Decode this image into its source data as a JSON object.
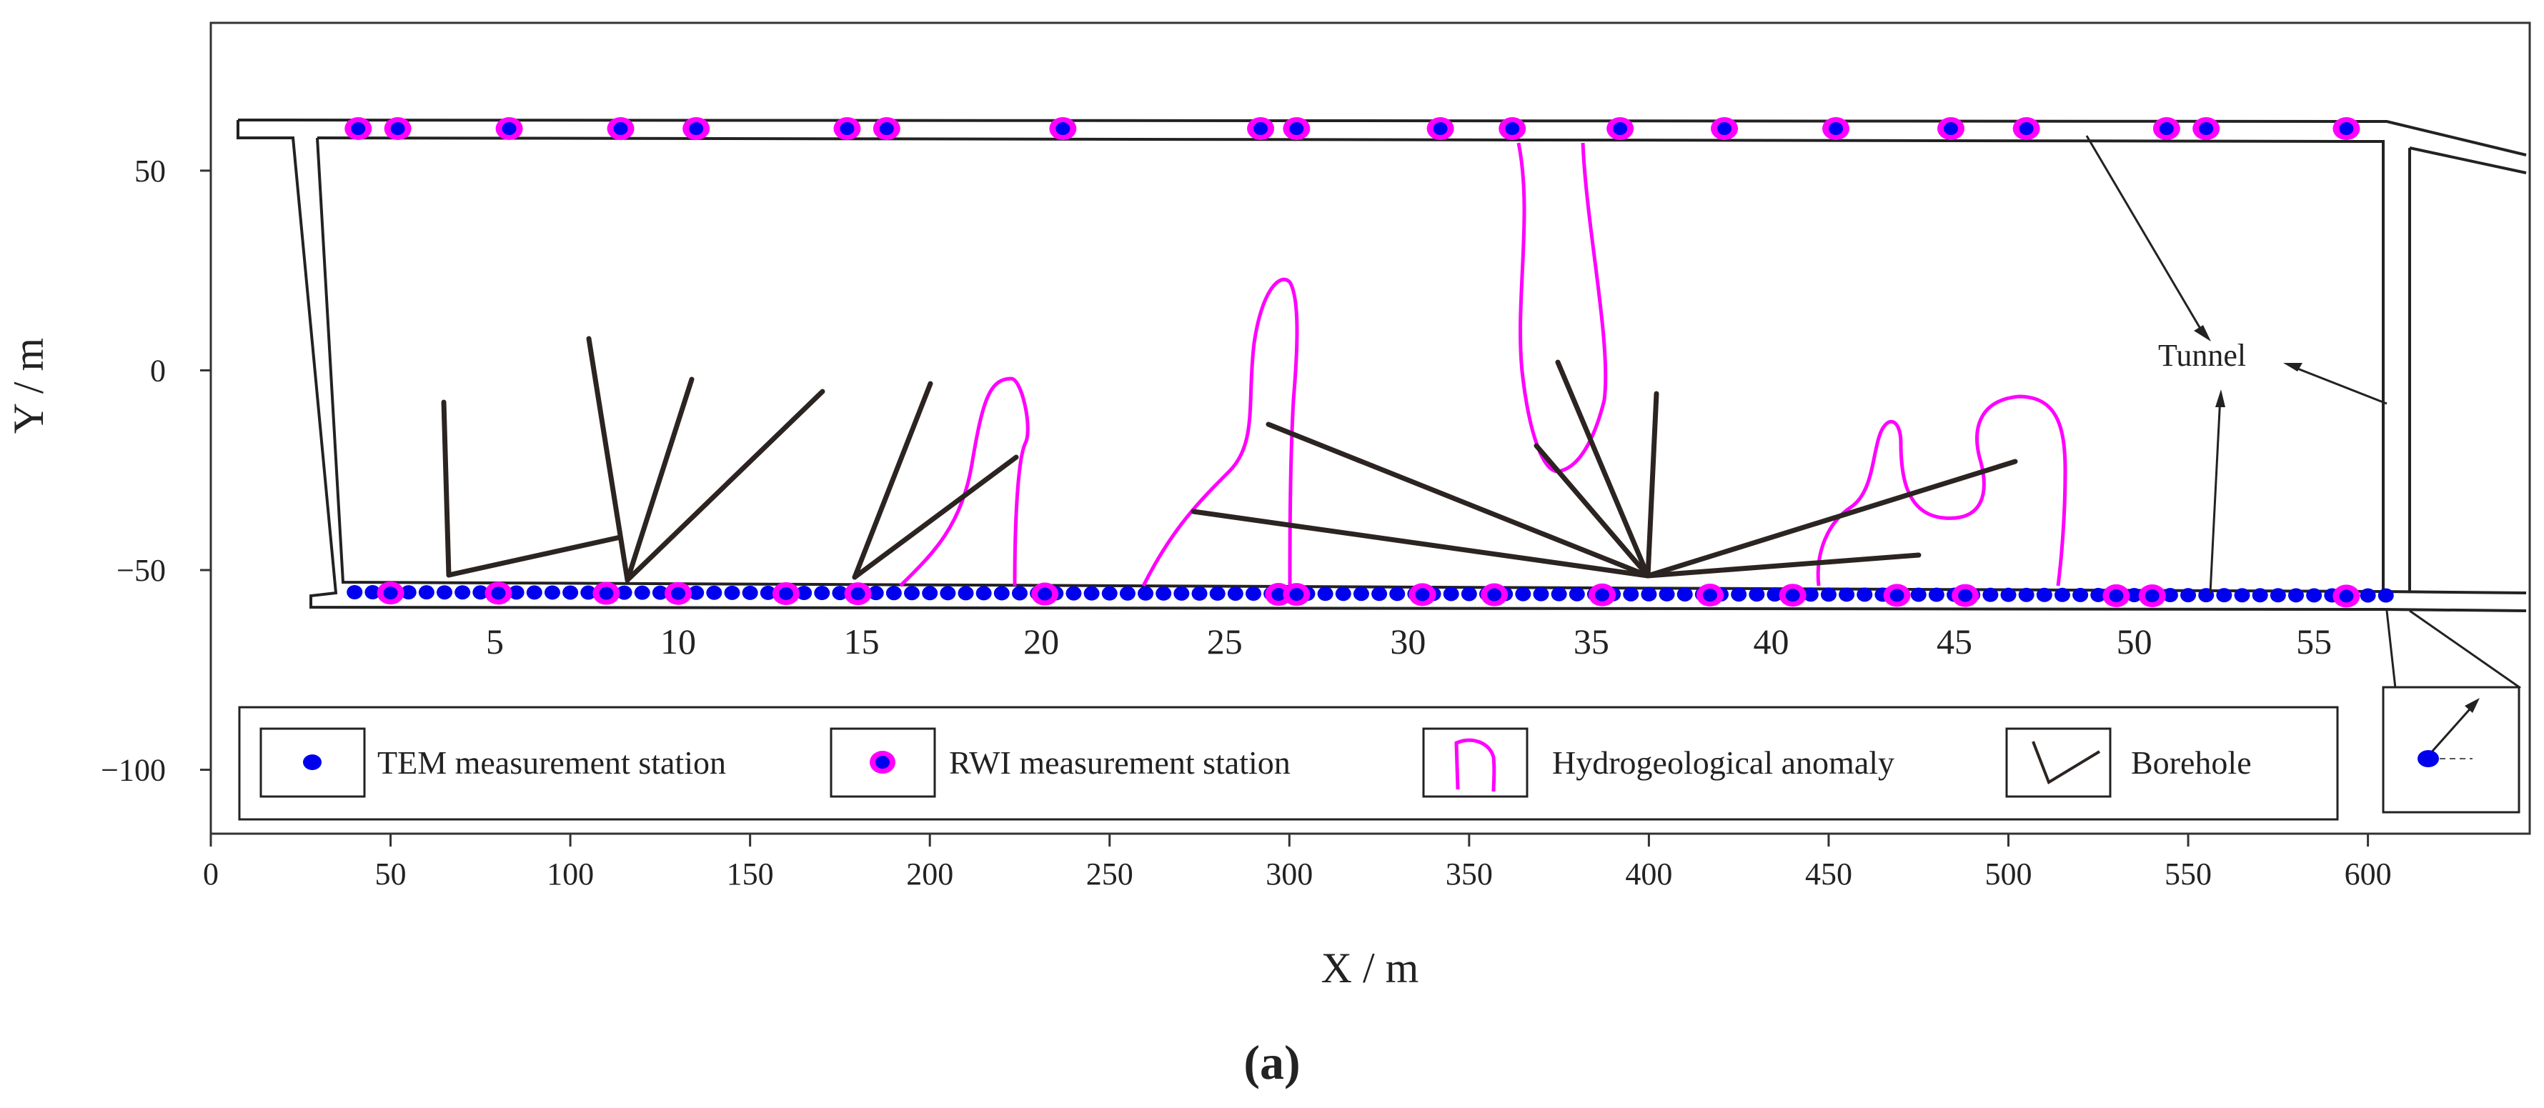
{
  "figure": {
    "label": "(a)",
    "x_axis": {
      "title": "X / m",
      "ticks": [
        0,
        50,
        100,
        150,
        200,
        250,
        300,
        350,
        400,
        450,
        500,
        550,
        600
      ],
      "range": [
        0,
        645
      ]
    },
    "y_axis": {
      "title": "Y / m",
      "ticks": [
        50,
        0,
        -50,
        -100
      ],
      "tick_labels": [
        "50",
        "0",
        "−50",
        "−100"
      ],
      "range": [
        -116,
        87
      ]
    },
    "station_numbers": [
      "5",
      "10",
      "15",
      "20",
      "25",
      "30",
      "35",
      "40",
      "45",
      "50",
      "55"
    ],
    "tunnel_label": "Tunnel",
    "legend": {
      "tem": "TEM measurement station",
      "rwi": "RWI measurement station",
      "anomaly": "Hydrogeological anomaly",
      "borehole": "Borehole"
    },
    "colors": {
      "tem": "#0000ee",
      "rwi": "#ff00ff",
      "anomaly": "#ff00ff",
      "borehole": "#2b2421",
      "tunnel": "#222222"
    }
  }
}
